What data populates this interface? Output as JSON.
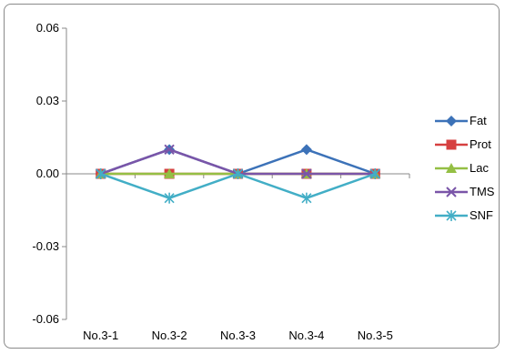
{
  "chart_data": {
    "type": "line",
    "categories": [
      "No.3-1",
      "No.3-2",
      "No.3-3",
      "No.3-4",
      "No.3-5"
    ],
    "y_ticks": [
      "0.06",
      "0.03",
      "0.00",
      "-0.03",
      "-0.06"
    ],
    "ylim": [
      -0.06,
      0.06
    ],
    "grid": false,
    "legend_position": "right",
    "series": [
      {
        "name": "Fat",
        "color": "#3c72b8",
        "marker": "diamond",
        "values": [
          0,
          0.01,
          0,
          0.01,
          0
        ]
      },
      {
        "name": "Prot",
        "color": "#d64040",
        "marker": "square",
        "values": [
          0,
          0,
          0,
          0,
          0
        ]
      },
      {
        "name": "Lac",
        "color": "#94bf44",
        "marker": "triangle",
        "values": [
          0,
          0,
          0,
          0,
          0
        ]
      },
      {
        "name": "TMS",
        "color": "#7a55a8",
        "marker": "x",
        "values": [
          0,
          0.01,
          0,
          0,
          0
        ]
      },
      {
        "name": "SNF",
        "color": "#42aec6",
        "marker": "star",
        "values": [
          0,
          -0.01,
          0,
          -0.01,
          0
        ]
      }
    ]
  }
}
